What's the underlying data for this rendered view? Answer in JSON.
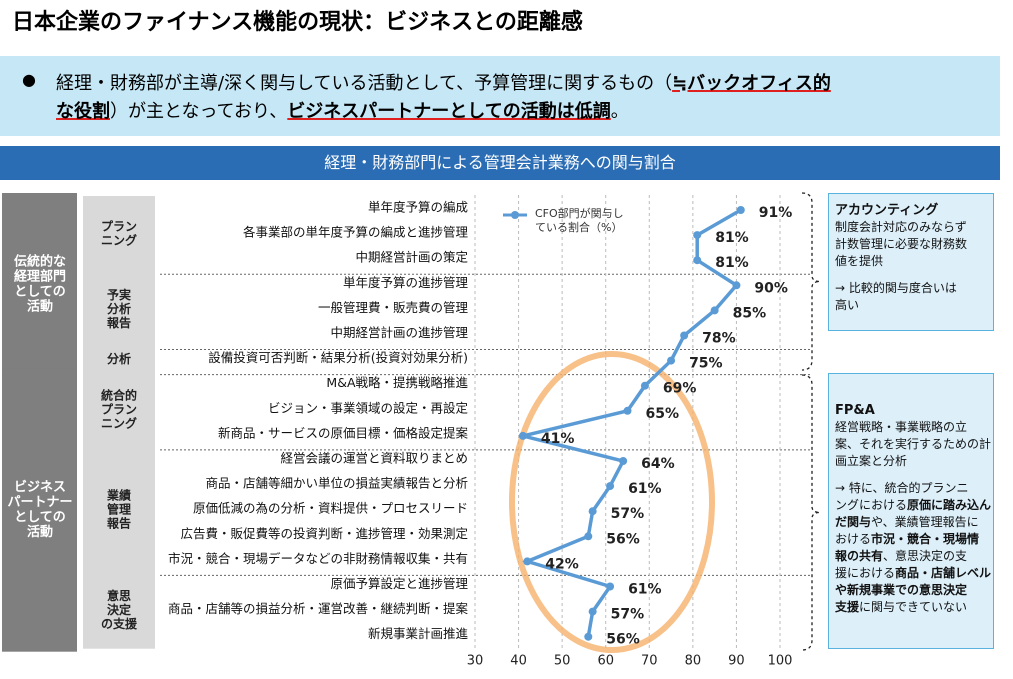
{
  "title": "日本企業のファイナンス機能の現状：ビジネスとの距離感",
  "bullet": [
    [
      {
        "text": "経理・財務部が主導/深く関与している活動として、予算管理に関するもの（",
        "emph": false
      },
      {
        "text": "≒バックオフィス的",
        "emph": true
      }
    ],
    [
      {
        "text": "な役割",
        "emph": true
      },
      {
        "text": "）が主となっており、",
        "emph": false
      },
      {
        "text": "ビジネスパートナーとしての活動は低調",
        "emph": true
      },
      {
        "text": "。",
        "emph": false
      }
    ]
  ],
  "bullet_symbol": "●",
  "groups": [
    [
      "伝統的な",
      "経理部門",
      "としての",
      "活動"
    ],
    [
      "ビジネス",
      "パートナー",
      "としての",
      "活動"
    ]
  ],
  "subgroups": [
    [
      "プラン",
      "ニング"
    ],
    [
      "予実",
      "分析",
      "報告"
    ],
    [
      "分析"
    ],
    [
      "統合的",
      "プラン",
      "ニング"
    ],
    [
      "業績",
      "管理",
      "報告"
    ],
    [
      "意思",
      "決定",
      "の支援"
    ]
  ],
  "notes": [
    {
      "heading": "アカウンティング",
      "lines": [
        [
          {
            "text": "制度会計対応のみならず",
            "bold": false
          }
        ],
        [
          {
            "text": "計数管理に必要な財務数",
            "bold": false
          }
        ],
        [
          {
            "text": "値を提供",
            "bold": false
          }
        ]
      ],
      "lines2": [
        [
          {
            "text": "→  比較的関与度合いは",
            "bold": false
          }
        ],
        [
          {
            "text": "高い",
            "bold": false
          }
        ]
      ]
    },
    {
      "heading": "FP&A",
      "lines": [
        [
          {
            "text": "経営戦略・事業戦略の立",
            "bold": false
          }
        ],
        [
          {
            "text": "案、それを実行するための計",
            "bold": false
          }
        ],
        [
          {
            "text": "画立案と分析",
            "bold": false
          }
        ]
      ],
      "lines2": [
        [
          {
            "text": "→  特に、統合的プランニ",
            "bold": false
          }
        ],
        [
          {
            "text": "ングにおける",
            "bold": false
          },
          {
            "text": "原価に踏み込ん",
            "bold": true
          }
        ],
        [
          {
            "text": "だ関与",
            "bold": true
          },
          {
            "text": "や、業績管理報告に",
            "bold": false
          }
        ],
        [
          {
            "text": "おける",
            "bold": false
          },
          {
            "text": "市況・競合・現場情",
            "bold": true
          }
        ],
        [
          {
            "text": "報の共有",
            "bold": true
          },
          {
            "text": "、意思決定の支",
            "bold": false
          }
        ],
        [
          {
            "text": "援における",
            "bold": false
          },
          {
            "text": "商品・店舗レベル",
            "bold": true
          }
        ],
        [
          {
            "text": "や新規事業での意思決定",
            "bold": true
          }
        ],
        [
          {
            "text": "支援",
            "bold": true
          },
          {
            "text": "に関与できていない",
            "bold": false
          }
        ]
      ]
    }
  ],
  "chart_data": {
    "type": "line",
    "title": "経理・財務部門による管理会計業務への関与割合",
    "categories": [
      "単年度予算の編成",
      "各事業部の単年度予算の編成と進捗管理",
      "中期経営計画の策定",
      "単年度予算の進捗管理",
      "一般管理費・販売費の管理",
      "中期経営計画の進捗管理",
      "設備投資可否判断・結果分析(投資対効果分析)",
      "M&A戦略・提携戦略推進",
      "ビジョン・事業領域の設定・再設定",
      "新商品・サービスの原価目標・価格設定提案",
      "経営会議の運営と資料取りまとめ",
      "商品・店舗等細かい単位の損益実績報告と分析",
      "原価低減の為の分析・資料提供・プロセスリード",
      "広告費・販促費等の投資判断・進捗管理・効果測定",
      "市況・競合・現場データなどの非財務情報収集・共有",
      "原価予算設定と進捗管理",
      "商品・店舗等の損益分析・運営改善・継続判断・提案",
      "新規事業計画推進"
    ],
    "series": [
      {
        "name": "CFO部門が関与している割合（%）",
        "color": "#5b9bd5",
        "values": [
          91,
          81,
          81,
          90,
          85,
          78,
          75,
          69,
          65,
          41,
          64,
          61,
          57,
          56,
          42,
          61,
          57,
          56
        ],
        "value_labels": [
          "91%",
          "81%",
          "81%",
          "90%",
          "85%",
          "78%",
          "75%",
          "69%",
          "65%",
          "41%",
          "64%",
          "61%",
          "57%",
          "56%",
          "42%",
          "61%",
          "57%",
          "56%"
        ]
      }
    ],
    "xlim": [
      30,
      100
    ],
    "xticks": [
      30,
      40,
      50,
      60,
      70,
      80,
      90,
      100
    ],
    "grid": true
  }
}
